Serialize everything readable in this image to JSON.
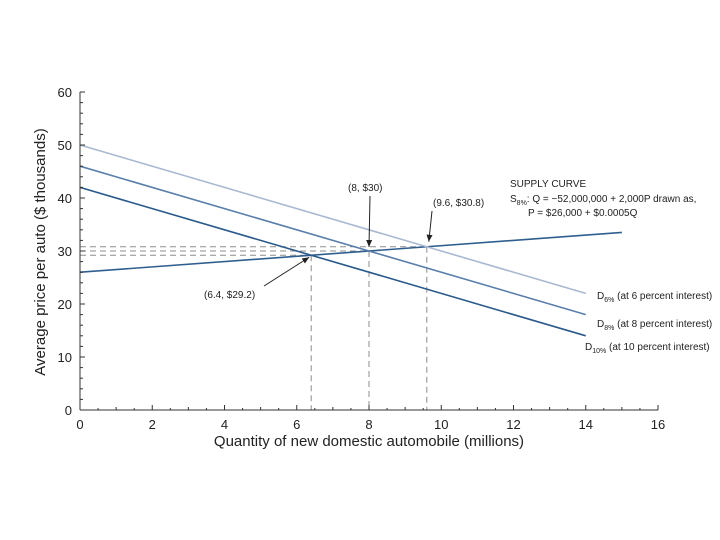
{
  "chart_data": {
    "type": "line",
    "xlabel": "Quantity of new domestic automobile (millions)",
    "ylabel": "Average price per auto ($ thousands)",
    "xlim": [
      0,
      16
    ],
    "ylim": [
      0,
      60
    ],
    "xticks": [
      0,
      2,
      4,
      6,
      8,
      10,
      12,
      14,
      16
    ],
    "yticks": [
      0,
      10,
      20,
      30,
      40,
      50,
      60
    ],
    "colors": {
      "supply": "#2f5f8f",
      "d6": "#a9b9d2",
      "d8": "#5a7fab",
      "d10": "#2a5a8c",
      "guide": "#8d8d8d"
    },
    "series": [
      {
        "key": "supply",
        "name": "Supply S8%",
        "x": [
          0,
          15
        ],
        "y": [
          26,
          33.5
        ]
      },
      {
        "key": "d6",
        "name": "D6% (at 6 percent interest)",
        "x": [
          0,
          14
        ],
        "y": [
          50,
          22
        ]
      },
      {
        "key": "d8",
        "name": "D8% (at 8 percent interest)",
        "x": [
          0,
          14
        ],
        "y": [
          46,
          18
        ]
      },
      {
        "key": "d10",
        "name": "D10% (at 10 percent interest)",
        "x": [
          0,
          14
        ],
        "y": [
          42,
          14
        ]
      }
    ],
    "points": [
      {
        "x": 6.4,
        "y": 29.2,
        "label": "(6.4, $29.2)"
      },
      {
        "x": 8,
        "y": 30,
        "label": "(8, $30)"
      },
      {
        "x": 9.6,
        "y": 30.8,
        "label": "(9.6, $30.8)"
      }
    ],
    "legend": [
      {
        "main": "D",
        "sub": "6%",
        "rest": " (at 6 percent interest)"
      },
      {
        "main": "D",
        "sub": "8%",
        "rest": " (at 8 percent interest)"
      },
      {
        "main": "D",
        "sub": "10%",
        "rest": " (at 10 percent interest)"
      }
    ],
    "supply_note": {
      "title": "SUPPLY CURVE",
      "line1_main": "S",
      "line1_sub": "8%",
      "line1_rest": ": Q = −52,000,000 + 2,000P drawn as,",
      "line2": "P = $26,000 + $0.0005Q"
    }
  }
}
